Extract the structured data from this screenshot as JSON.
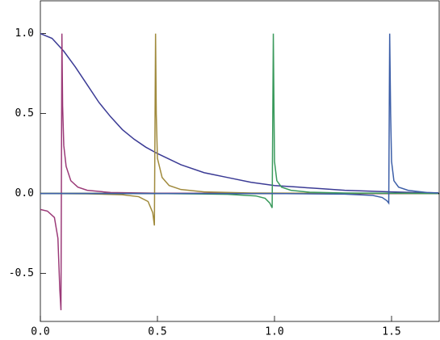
{
  "chart_data": {
    "type": "line",
    "xlim": [
      0,
      1.7
    ],
    "ylim": [
      -0.8,
      1.2
    ],
    "xticks": [
      {
        "value": 0,
        "label": "0.0"
      },
      0.5,
      {
        "value": 1,
        "label": "1.0"
      },
      1.5
    ],
    "yticks": [
      {
        "value": -0.5,
        "label": "-0.5"
      },
      {
        "value": 0,
        "label": "0.0"
      },
      0.5,
      {
        "value": 1,
        "label": "1.0"
      }
    ],
    "series": [
      {
        "color": "#3b3b95",
        "x": [
          0,
          0.05,
          0.1,
          0.15,
          0.2,
          0.25,
          0.3,
          0.35,
          0.4,
          0.45,
          0.5,
          0.6,
          0.7,
          0.8,
          0.9,
          1.0,
          1.1,
          1.2,
          1.3,
          1.4,
          1.5,
          1.6,
          1.7
        ],
        "values": [
          1,
          0.97,
          0.89,
          0.79,
          0.68,
          0.57,
          0.48,
          0.4,
          0.34,
          0.29,
          0.25,
          0.18,
          0.13,
          0.1,
          0.07,
          0.05,
          0.04,
          0.03,
          0.02,
          0.015,
          0.01,
          0.006,
          0.004
        ]
      },
      {
        "color": "#9b3a78",
        "x": [
          0,
          0.03,
          0.06,
          0.075,
          0.083,
          0.088,
          0.092,
          0.095,
          0.1,
          0.11,
          0.13,
          0.16,
          0.2,
          0.3,
          0.5,
          0.8,
          1.7
        ],
        "values": [
          -0.1,
          -0.11,
          -0.15,
          -0.28,
          -0.6,
          -0.73,
          1.0,
          0.55,
          0.3,
          0.17,
          0.08,
          0.04,
          0.02,
          0.006,
          0.002,
          0.001,
          0
        ]
      },
      {
        "color": "#a08a3c",
        "x": [
          0,
          0.2,
          0.35,
          0.42,
          0.46,
          0.48,
          0.487,
          0.492,
          0.495,
          0.5,
          0.52,
          0.55,
          0.6,
          0.7,
          0.9,
          1.7
        ],
        "values": [
          0,
          -0.002,
          -0.008,
          -0.02,
          -0.05,
          -0.12,
          -0.2,
          1.0,
          0.5,
          0.22,
          0.1,
          0.05,
          0.025,
          0.01,
          0.003,
          0
        ]
      },
      {
        "color": "#3a9a5c",
        "x": [
          0,
          0.5,
          0.8,
          0.92,
          0.96,
          0.98,
          0.99,
          0.995,
          0.998,
          1.0,
          1.01,
          1.03,
          1.07,
          1.15,
          1.3,
          1.7
        ],
        "values": [
          0,
          0,
          -0.005,
          -0.015,
          -0.03,
          -0.06,
          -0.09,
          1.0,
          0.5,
          0.2,
          0.08,
          0.04,
          0.02,
          0.008,
          0.003,
          0
        ]
      },
      {
        "color": "#3d5fa8",
        "x": [
          0,
          1.0,
          1.3,
          1.42,
          1.46,
          1.48,
          1.488,
          1.492,
          1.496,
          1.5,
          1.51,
          1.53,
          1.57,
          1.65,
          1.7
        ],
        "values": [
          0,
          0,
          -0.004,
          -0.012,
          -0.025,
          -0.045,
          -0.06,
          1.0,
          0.5,
          0.2,
          0.08,
          0.04,
          0.02,
          0.006,
          0.003
        ]
      }
    ]
  }
}
